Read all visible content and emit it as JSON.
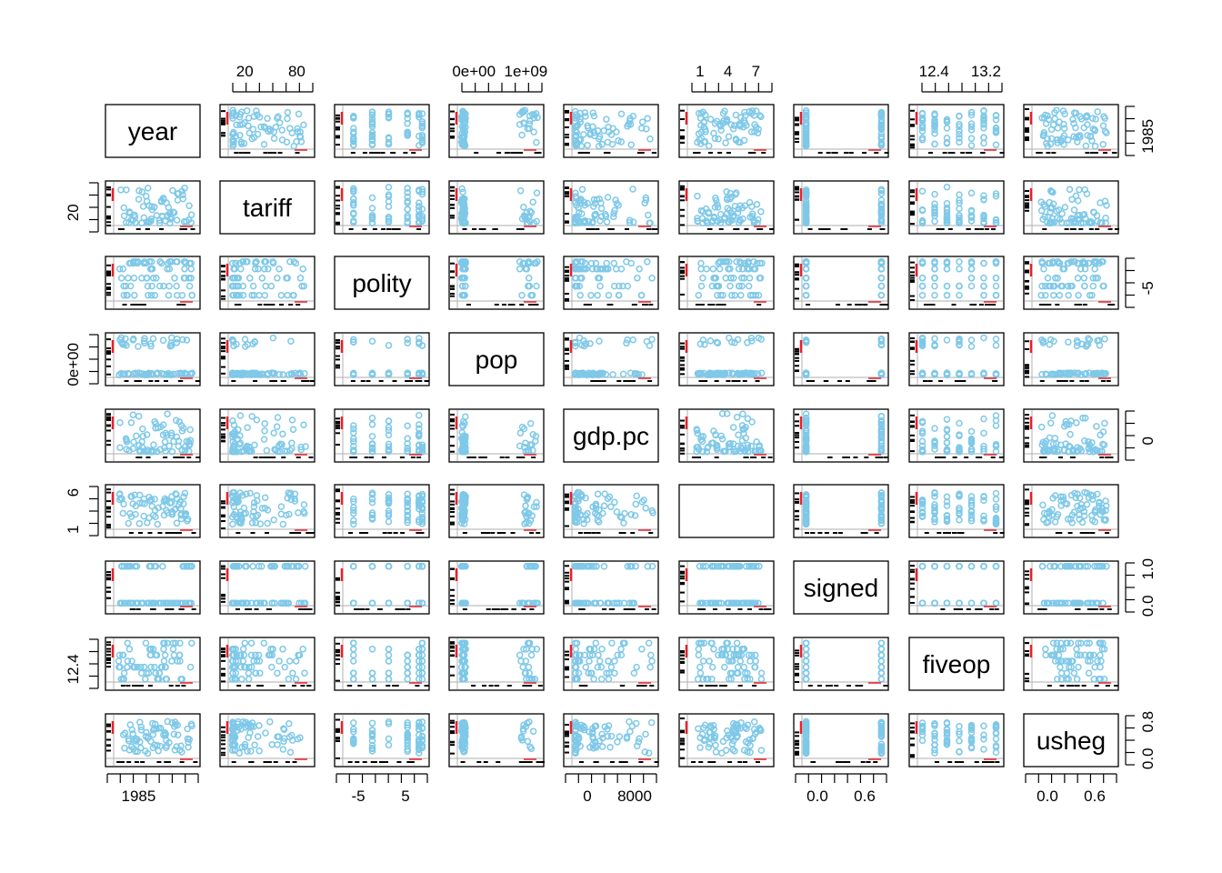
{
  "chart_data": {
    "type": "scatter-matrix",
    "variables": [
      "year",
      "tariff",
      "polity",
      "pop",
      "gdp.pc",
      "",
      "signed",
      "fiveop",
      "usheg"
    ],
    "point_color": "#7ec8e8",
    "rug_color": "#000000",
    "missing_marker_color": "#e8202a",
    "axis_labels": {
      "top": [
        {
          "col": 1,
          "ticks": [
            "20",
            "80"
          ]
        },
        {
          "col": 3,
          "ticks": [
            "0e+00",
            "1e+09"
          ]
        },
        {
          "col": 5,
          "ticks": [
            "1",
            "4",
            "7"
          ]
        },
        {
          "col": 7,
          "ticks": [
            "12.4",
            "13.2"
          ]
        }
      ],
      "bottom": [
        {
          "col": 0,
          "ticks": [
            "1985"
          ]
        },
        {
          "col": 2,
          "ticks": [
            "-5",
            "5"
          ]
        },
        {
          "col": 4,
          "ticks": [
            "0",
            "8000"
          ]
        },
        {
          "col": 6,
          "ticks": [
            "0.0",
            "0.6"
          ]
        },
        {
          "col": 8,
          "ticks": [
            "0.0",
            "0.6"
          ]
        }
      ],
      "left": [
        {
          "row": 1,
          "ticks": [
            "20"
          ]
        },
        {
          "row": 3,
          "ticks": [
            "0e+00"
          ]
        },
        {
          "row": 5,
          "ticks": [
            "1",
            "6"
          ]
        },
        {
          "row": 7,
          "ticks": [
            "12.4"
          ]
        }
      ],
      "right": [
        {
          "row": 0,
          "ticks": [
            "1985"
          ]
        },
        {
          "row": 2,
          "ticks": [
            "-5"
          ]
        },
        {
          "row": 4,
          "ticks": [
            "0"
          ]
        },
        {
          "row": 6,
          "ticks": [
            "0.0",
            "1.0"
          ]
        },
        {
          "row": 8,
          "ticks": [
            "0.0",
            "0.8"
          ]
        }
      ]
    }
  }
}
